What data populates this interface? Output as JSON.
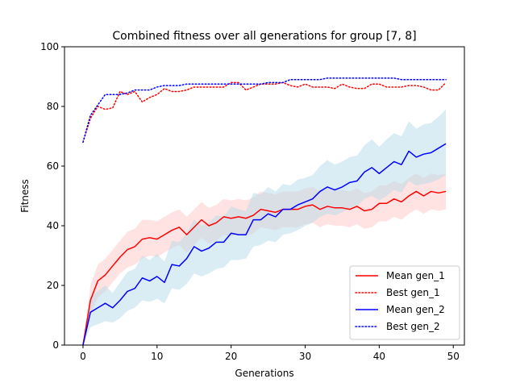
{
  "chart_data": {
    "type": "line",
    "title": "Combined fitness over all generations for group [7, 8]",
    "xlabel": "Generations",
    "ylabel": "Fitness",
    "xlim": [
      -2.5,
      51.5
    ],
    "ylim": [
      0,
      100
    ],
    "xticks": [
      0,
      10,
      20,
      30,
      40,
      50
    ],
    "yticks": [
      0,
      20,
      40,
      60,
      80,
      100
    ],
    "grid": false,
    "legend_position": "lower-right",
    "x": [
      0,
      1,
      2,
      3,
      4,
      5,
      6,
      7,
      8,
      9,
      10,
      11,
      12,
      13,
      14,
      15,
      16,
      17,
      18,
      19,
      20,
      21,
      22,
      23,
      24,
      25,
      26,
      27,
      28,
      29,
      30,
      31,
      32,
      33,
      34,
      35,
      36,
      37,
      38,
      39,
      40,
      41,
      42,
      43,
      44,
      45,
      46,
      47,
      48,
      49
    ],
    "series": [
      {
        "name": "Mean gen_1",
        "color": "#ff0000",
        "style": "solid",
        "values": [
          0,
          15,
          21.5,
          23.5,
          26.5,
          29.5,
          32,
          33,
          35.5,
          36,
          35.5,
          37,
          38.5,
          39.5,
          37,
          39.5,
          42,
          40,
          41,
          43,
          42.5,
          43,
          42.5,
          43.5,
          45.5,
          45,
          44.5,
          45.5,
          45.5,
          45.5,
          46.5,
          47,
          45.5,
          46.5,
          46,
          46,
          45.5,
          46.5,
          45,
          45.5,
          47.5,
          47.5,
          49,
          48,
          50,
          51.5,
          50,
          51.5,
          51,
          51.5
        ],
        "band_low": [
          0,
          10,
          16,
          18,
          21,
          24,
          26,
          27,
          29,
          30,
          29.5,
          31,
          32.5,
          33.5,
          31,
          33.5,
          36,
          34,
          35,
          37,
          36.5,
          37,
          36.5,
          37.5,
          39.5,
          39,
          38.5,
          39.5,
          39.5,
          39.5,
          40.5,
          41,
          39.5,
          40.5,
          40,
          40,
          39.5,
          40.5,
          39,
          39.5,
          41.5,
          41.5,
          43,
          42,
          44,
          45.5,
          44,
          45.5,
          45,
          45.5
        ],
        "band_high": [
          0,
          20,
          27,
          29,
          32,
          35,
          38,
          39,
          42,
          42,
          41.5,
          43,
          44.5,
          45.5,
          43,
          45.5,
          48,
          46,
          47,
          49,
          48.5,
          49,
          48.5,
          49.5,
          51.5,
          51,
          50.5,
          51.5,
          51.5,
          51.5,
          52.5,
          53,
          51.5,
          52.5,
          52,
          52,
          51.5,
          52.5,
          51,
          51.5,
          53.5,
          53.5,
          55,
          54,
          56,
          57.5,
          56,
          57.5,
          57,
          57.5
        ]
      },
      {
        "name": "Best gen_1",
        "color": "#ff0000",
        "style": "dotted",
        "values": [
          68,
          76,
          80,
          79,
          79.5,
          85,
          84,
          85,
          81.5,
          83,
          84,
          86,
          85,
          85,
          85.5,
          86.5,
          86.5,
          86.5,
          86.5,
          86.5,
          88,
          88,
          85.5,
          86.5,
          87.5,
          87.5,
          87.5,
          88,
          87,
          86.5,
          87.5,
          86.5,
          86.5,
          86.5,
          86,
          87.5,
          86.5,
          86,
          86,
          87.5,
          87.5,
          86.5,
          86.5,
          86.5,
          87,
          87,
          86.5,
          85.5,
          85.5,
          88
        ]
      },
      {
        "name": "Mean gen_2",
        "color": "#0000ff",
        "style": "solid",
        "values": [
          0,
          11,
          12.5,
          14,
          12.5,
          15,
          18,
          19,
          22.5,
          21.5,
          23,
          21,
          27,
          26.5,
          29,
          33,
          31.5,
          32.5,
          34.5,
          34.5,
          37.5,
          37,
          37,
          42,
          42,
          44,
          43,
          45.5,
          45.5,
          47,
          48,
          49,
          51.5,
          53,
          52,
          53,
          54.5,
          55,
          58,
          59.5,
          57.5,
          59.5,
          61.5,
          60.5,
          65,
          63,
          64,
          64.5,
          66,
          67.5
        ],
        "band_low": [
          0,
          6,
          7,
          8,
          7.5,
          9,
          11.5,
          12.5,
          15,
          14.5,
          15.5,
          14,
          19,
          18.5,
          20.5,
          24,
          23,
          24,
          25.5,
          26,
          28.5,
          28.5,
          29,
          33,
          33.5,
          35,
          34.5,
          37,
          37.5,
          38.5,
          40,
          41,
          43,
          44,
          43.5,
          44.5,
          46,
          46.5,
          49,
          50,
          48.5,
          50,
          52,
          51,
          55,
          53.5,
          54,
          54.5,
          55.5,
          57
        ],
        "band_high": [
          0,
          16,
          18,
          20,
          17.5,
          21,
          24.5,
          25.5,
          30,
          28.5,
          30.5,
          28,
          35,
          34.5,
          37.5,
          42,
          40,
          41,
          43.5,
          43,
          46.5,
          45.5,
          45,
          51,
          50.5,
          53,
          51.5,
          54,
          53.5,
          55.5,
          56,
          57,
          60,
          62,
          60.5,
          61.5,
          63,
          63.5,
          67,
          69,
          66.5,
          69,
          71,
          70,
          75,
          72.5,
          74,
          74.5,
          76.5,
          79
        ]
      },
      {
        "name": "Best gen_2",
        "color": "#0000ff",
        "style": "dotted",
        "values": [
          68,
          77,
          80.5,
          84,
          84,
          84,
          84.5,
          85.5,
          85.5,
          85.5,
          86.5,
          87,
          87,
          87,
          87.5,
          87.5,
          87.5,
          87.5,
          87.5,
          87.5,
          87.5,
          87.5,
          87.5,
          87.5,
          87.5,
          88,
          88,
          88,
          89,
          89,
          89,
          89,
          89,
          89.5,
          89.5,
          89.5,
          89.5,
          89.5,
          89.5,
          89.5,
          89.5,
          89.5,
          89.5,
          89,
          89,
          89,
          89,
          89,
          89,
          89
        ]
      }
    ]
  }
}
